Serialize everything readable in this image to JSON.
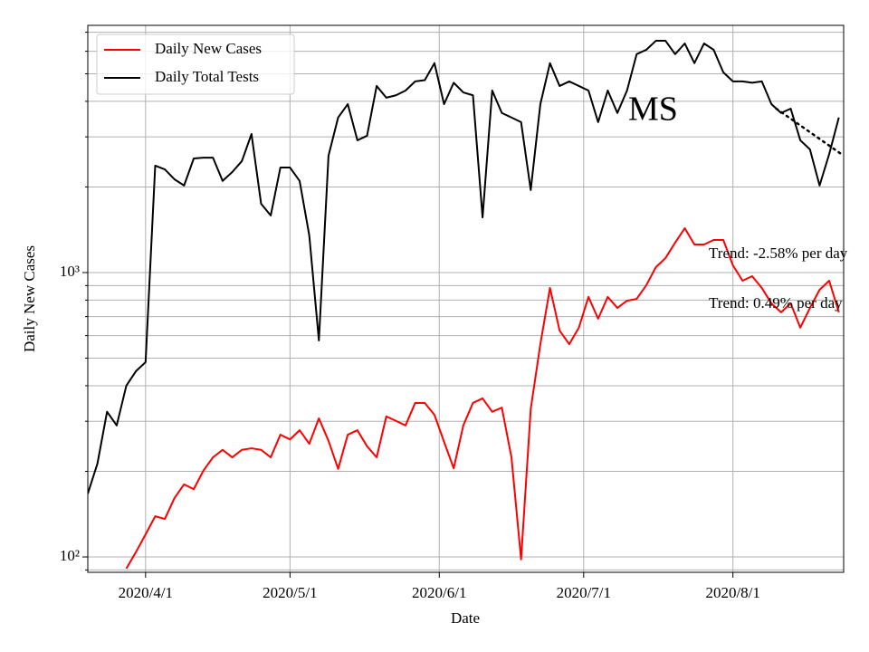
{
  "chart_data": {
    "type": "line",
    "x_label": "Date",
    "y_label": "Daily New Cases",
    "log_y": true,
    "grid": true,
    "legend": "upper left",
    "xlim": [
      "2020-03-20",
      "2020-08-24"
    ],
    "xticks": [
      {
        "value": "2020-04-01",
        "label": "2020/4/1"
      },
      {
        "value": "2020-05-01",
        "label": "2020/5/1"
      },
      {
        "value": "2020-06-01",
        "label": "2020/6/1"
      },
      {
        "value": "2020-07-01",
        "label": "2020/7/1"
      },
      {
        "value": "2020-08-01",
        "label": "2020/8/1"
      }
    ],
    "ylim": [
      88.3,
      7400
    ],
    "yticks": [
      {
        "value": 100,
        "label": "10²"
      },
      {
        "value": 1000,
        "label": "10³"
      }
    ],
    "minor_yticks": [
      90,
      200,
      300,
      400,
      500,
      600,
      700,
      800,
      900,
      2000,
      3000,
      4000,
      5000,
      6000,
      7000
    ],
    "x": [
      "2020-03-20",
      "2020-03-22",
      "2020-03-24",
      "2020-03-26",
      "2020-03-28",
      "2020-03-30",
      "2020-04-01",
      "2020-04-03",
      "2020-04-05",
      "2020-04-07",
      "2020-04-09",
      "2020-04-11",
      "2020-04-13",
      "2020-04-15",
      "2020-04-17",
      "2020-04-19",
      "2020-04-21",
      "2020-04-23",
      "2020-04-25",
      "2020-04-27",
      "2020-04-29",
      "2020-05-01",
      "2020-05-03",
      "2020-05-05",
      "2020-05-07",
      "2020-05-09",
      "2020-05-11",
      "2020-05-13",
      "2020-05-15",
      "2020-05-17",
      "2020-05-19",
      "2020-05-21",
      "2020-05-23",
      "2020-05-25",
      "2020-05-27",
      "2020-05-29",
      "2020-05-31",
      "2020-06-02",
      "2020-06-04",
      "2020-06-06",
      "2020-06-08",
      "2020-06-10",
      "2020-06-12",
      "2020-06-14",
      "2020-06-16",
      "2020-06-18",
      "2020-06-20",
      "2020-06-22",
      "2020-06-24",
      "2020-06-26",
      "2020-06-28",
      "2020-06-30",
      "2020-07-02",
      "2020-07-04",
      "2020-07-06",
      "2020-07-08",
      "2020-07-10",
      "2020-07-12",
      "2020-07-14",
      "2020-07-16",
      "2020-07-18",
      "2020-07-20",
      "2020-07-22",
      "2020-07-24",
      "2020-07-26",
      "2020-07-28",
      "2020-07-30",
      "2020-08-01",
      "2020-08-03",
      "2020-08-05",
      "2020-08-07",
      "2020-08-09",
      "2020-08-11",
      "2020-08-13",
      "2020-08-15",
      "2020-08-17",
      "2020-08-19",
      "2020-08-21",
      "2020-08-23"
    ],
    "series": [
      {
        "name": "Daily New Cases",
        "color": "#ff0000",
        "values": [
          null,
          null,
          null,
          null,
          91,
          104,
          120,
          139,
          136,
          161,
          180,
          173,
          201,
          224,
          238,
          224,
          238,
          241,
          238,
          224,
          269,
          259,
          279,
          250,
          307,
          256,
          204,
          269,
          279,
          245,
          224,
          312,
          301,
          290,
          348,
          348,
          316,
          254,
          205,
          290,
          348,
          361,
          324,
          335,
          224,
          98,
          331,
          560,
          883,
          625,
          560,
          640,
          821,
          688,
          821,
          751,
          796,
          808,
          902,
          1045,
          1125,
          1274,
          1432,
          1255,
          1255,
          1302,
          1302,
          1060,
          936,
          971,
          883,
          779,
          725,
          779,
          640,
          751,
          870,
          936,
          725
        ]
      },
      {
        "name": "Daily Total Tests",
        "color": "#000000",
        "values": [
          167,
          213,
          324,
          290,
          400,
          450,
          484,
          2376,
          2306,
          2128,
          2023,
          2518,
          2535,
          2535,
          2100,
          2256,
          2465,
          3070,
          1745,
          1587,
          2340,
          2340,
          2100,
          1351,
          577,
          2576,
          3510,
          3910,
          2918,
          3027,
          4530,
          4120,
          4200,
          4365,
          4700,
          4750,
          5450,
          3910,
          4650,
          4300,
          4200,
          1563,
          4365,
          3640,
          3510,
          3380,
          1950,
          3910,
          5450,
          4530,
          4700,
          4530,
          4365,
          3380,
          4365,
          3640,
          4365,
          5860,
          6070,
          6530,
          6530,
          5860,
          6390,
          5450,
          6390,
          6070,
          5060,
          4700,
          4700,
          4650,
          4700,
          3910,
          3640,
          3770,
          2918,
          2710,
          2023,
          2610,
          3510
        ]
      }
    ],
    "trend_lines": [
      {
        "color": "#000000",
        "style": "dotted",
        "x": [
          "2020-08-10",
          "2020-08-24"
        ],
        "values": [
          3770,
          2576
        ]
      }
    ],
    "annotations": [
      {
        "text": "MS"
      },
      {
        "text": "Trend: -2.58% per day"
      },
      {
        "text": "Trend: 0.49% per day"
      }
    ]
  }
}
